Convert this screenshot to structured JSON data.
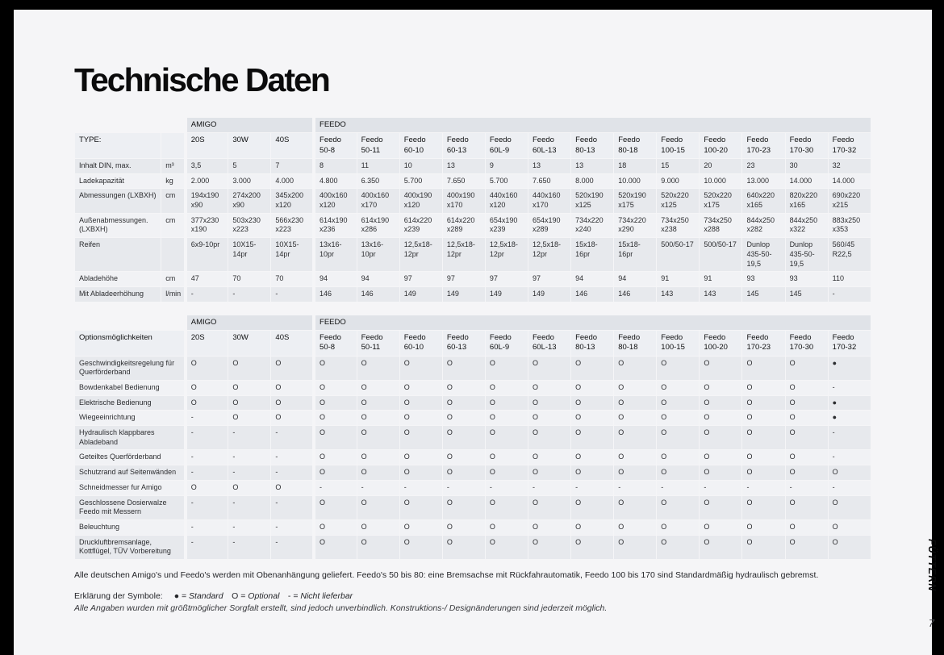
{
  "page": {
    "title": "Technische Daten",
    "side_label": "FÜTTERN",
    "page_number": "7"
  },
  "groups": {
    "amigo": "AMIGO",
    "feedo": "FEEDO"
  },
  "models": {
    "amigo": [
      "20S",
      "30W",
      "40S"
    ],
    "feedo": [
      "Feedo 50-8",
      "Feedo 50-11",
      "Feedo 60-10",
      "Feedo 60-13",
      "Feedo 60L-9",
      "Feedo 60L-13",
      "Feedo 80-13",
      "Feedo 80-18",
      "Feedo 100-15",
      "Feedo 100-20",
      "Feedo 170-23",
      "Feedo 170-30",
      "Feedo 170-32"
    ]
  },
  "spec_table": {
    "corner_label": "TYPE:",
    "rows": [
      {
        "label": "Inhalt DIN, max.",
        "unit": "m³",
        "values": [
          "3,5",
          "5",
          "7",
          "8",
          "11",
          "10",
          "13",
          "9",
          "13",
          "13",
          "18",
          "15",
          "20",
          "23",
          "30",
          "32"
        ]
      },
      {
        "label": "Ladekapazität",
        "unit": "kg",
        "values": [
          "2.000",
          "3.000",
          "4.000",
          "4.800",
          "6.350",
          "5.700",
          "7.650",
          "5.700",
          "7.650",
          "8.000",
          "10.000",
          "9.000",
          "10.000",
          "13.000",
          "14.000",
          "14.000"
        ]
      },
      {
        "label": "Abmessungen (LXBXH)",
        "unit": "cm",
        "values": [
          "194x190 x90",
          "274x200 x90",
          "345x200 x120",
          "400x160 x120",
          "400x160 x170",
          "400x190 x120",
          "400x190 x170",
          "440x160 x120",
          "440x160 x170",
          "520x190 x125",
          "520x190 x175",
          "520x220 x125",
          "520x220 x175",
          "640x220 x165",
          "820x220 x165",
          "690x220 x215"
        ]
      },
      {
        "label": "Außenabmessungen. (LXBXH)",
        "unit": "cm",
        "values": [
          "377x230 x190",
          "503x230 x223",
          "566x230 x223",
          "614x190 x236",
          "614x190 x286",
          "614x220 x239",
          "614x220 x289",
          "654x190 x239",
          "654x190 x289",
          "734x220 x240",
          "734x220 x290",
          "734x250 x238",
          "734x250 x288",
          "844x250 x282",
          "844x250 x322",
          "883x250 x353"
        ]
      },
      {
        "label": "Reifen",
        "unit": "",
        "values": [
          "6x9-10pr",
          "10X15-14pr",
          "10X15-14pr",
          "13x16-10pr",
          "13x16-10pr",
          "12,5x18-12pr",
          "12,5x18-12pr",
          "12,5x18-12pr",
          "12,5x18-12pr",
          "15x18-16pr",
          "15x18-16pr",
          "500/50-17",
          "500/50-17",
          "Dunlop 435-50-19,5",
          "Dunlop 435-50-19,5",
          "560/45 R22,5"
        ]
      },
      {
        "label": "Abladehöhe",
        "unit": "cm",
        "values": [
          "47",
          "70",
          "70",
          "94",
          "94",
          "97",
          "97",
          "97",
          "97",
          "94",
          "94",
          "91",
          "91",
          "93",
          "93",
          "110"
        ]
      },
      {
        "label": "Mit Abladeerhöhung",
        "unit": "l/min",
        "values": [
          "-",
          "-",
          "-",
          "146",
          "146",
          "149",
          "149",
          "149",
          "149",
          "146",
          "146",
          "143",
          "143",
          "145",
          "145",
          "-"
        ]
      }
    ]
  },
  "options_table": {
    "corner_label": "Optionsmöglichkeiten",
    "rows": [
      {
        "label": "Geschwindigkeitsregelung für Querförderband",
        "values": [
          "O",
          "O",
          "O",
          "O",
          "O",
          "O",
          "O",
          "O",
          "O",
          "O",
          "O",
          "O",
          "O",
          "O",
          "O",
          "●"
        ]
      },
      {
        "label": "Bowdenkabel Bedienung",
        "values": [
          "O",
          "O",
          "O",
          "O",
          "O",
          "O",
          "O",
          "O",
          "O",
          "O",
          "O",
          "O",
          "O",
          "O",
          "O",
          "-"
        ]
      },
      {
        "label": "Elektrische Bedienung",
        "values": [
          "O",
          "O",
          "O",
          "O",
          "O",
          "O",
          "O",
          "O",
          "O",
          "O",
          "O",
          "O",
          "O",
          "O",
          "O",
          "●"
        ]
      },
      {
        "label": "Wiegeeinrichtung",
        "values": [
          "-",
          "O",
          "O",
          "O",
          "O",
          "O",
          "O",
          "O",
          "O",
          "O",
          "O",
          "O",
          "O",
          "O",
          "O",
          "●"
        ]
      },
      {
        "label": "Hydraulisch klappbares Abladeband",
        "values": [
          "-",
          "-",
          "-",
          "O",
          "O",
          "O",
          "O",
          "O",
          "O",
          "O",
          "O",
          "O",
          "O",
          "O",
          "O",
          "-"
        ]
      },
      {
        "label": "Geteiltes Querförderband",
        "values": [
          "-",
          "-",
          "-",
          "O",
          "O",
          "O",
          "O",
          "O",
          "O",
          "O",
          "O",
          "O",
          "O",
          "O",
          "O",
          "-"
        ]
      },
      {
        "label": "Schutzrand auf Seitenwänden",
        "values": [
          "-",
          "-",
          "-",
          "O",
          "O",
          "O",
          "O",
          "O",
          "O",
          "O",
          "O",
          "O",
          "O",
          "O",
          "O",
          "O"
        ]
      },
      {
        "label": "Schneidmesser fur Amigo",
        "values": [
          "O",
          "O",
          "O",
          "-",
          "-",
          "-",
          "-",
          "-",
          "-",
          "-",
          "-",
          "-",
          "-",
          "-",
          "-",
          "-"
        ]
      },
      {
        "label": "Geschlossene Dosierwalze Feedo mit Messern",
        "values": [
          "-",
          "-",
          "-",
          "O",
          "O",
          "O",
          "O",
          "O",
          "O",
          "O",
          "O",
          "O",
          "O",
          "O",
          "O",
          "O"
        ]
      },
      {
        "label": "Beleuchtung",
        "values": [
          "-",
          "-",
          "-",
          "O",
          "O",
          "O",
          "O",
          "O",
          "O",
          "O",
          "O",
          "O",
          "O",
          "O",
          "O",
          "O"
        ]
      },
      {
        "label": "Druckluftbremsanlage, Kottflügel, TÜV Vorbereitung",
        "values": [
          "-",
          "-",
          "-",
          "O",
          "O",
          "O",
          "O",
          "O",
          "O",
          "O",
          "O",
          "O",
          "O",
          "O",
          "O",
          "O"
        ]
      }
    ]
  },
  "footer": {
    "note": "Alle deutschen Amigo's und Feedo's werden mit Obenanhängung geliefert. Feedo's 50 bis 80: eine Bremsachse mit Rückfahrautomatik, Feedo 100 bis 170 sind Standardmäßig hydraulisch gebremst.",
    "legend_label": "Erklärung der Symbole:",
    "legend": [
      {
        "symbol": "●",
        "meaning": "Standard"
      },
      {
        "symbol": "O",
        "meaning": "Optional"
      },
      {
        "symbol": "-",
        "meaning": "Nicht lieferbar"
      }
    ],
    "disclaimer": "Alle Angaben wurden mit größtmöglicher Sorgfalt erstellt, sind jedoch unverbindlich. Konstruktions-/ Designänderungen sind jederzeit möglich."
  },
  "colors": {
    "frame": "#000000",
    "page_bg": "#f5f5f7",
    "stripe_dark": "#e7e9ed",
    "stripe_light": "#f1f2f5",
    "group_header_bg": "#e0e3e8",
    "text": "#17181a"
  }
}
